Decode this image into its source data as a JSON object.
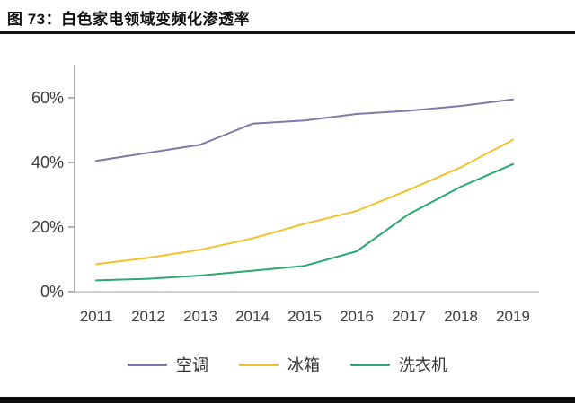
{
  "page": {
    "title": "图 73：白色家电领域变频化渗透率"
  },
  "chart_data": {
    "type": "line",
    "title": "白色家电领域变频化渗透率",
    "categories": [
      "2011",
      "2012",
      "2013",
      "2014",
      "2015",
      "2016",
      "2017",
      "2018",
      "2019"
    ],
    "series": [
      {
        "name": "空调",
        "color": "#8079A7",
        "values": [
          40.5,
          43,
          45.5,
          52,
          53,
          55,
          56,
          57.5,
          59.5
        ]
      },
      {
        "name": "冰箱",
        "color": "#F2C22E",
        "values": [
          8.5,
          10.5,
          13,
          16.5,
          21,
          25,
          31.5,
          38.5,
          47
        ]
      },
      {
        "name": "洗衣机",
        "color": "#29A96E",
        "values": [
          3.5,
          4,
          5,
          6.5,
          8,
          12.5,
          24,
          32.5,
          39.5
        ]
      }
    ],
    "xlabel": "",
    "ylabel": "",
    "ylim": [
      0,
      65
    ],
    "ytick_values": [
      0,
      20,
      40,
      60
    ],
    "ytick_labels": [
      "0%",
      "20%",
      "40%",
      "60%"
    ],
    "grid": false,
    "legend_position": "bottom",
    "axis_color": "#9a9a9a",
    "baseline_color": "#c4c4c4",
    "tick_label_color": "#3d3d3d"
  }
}
